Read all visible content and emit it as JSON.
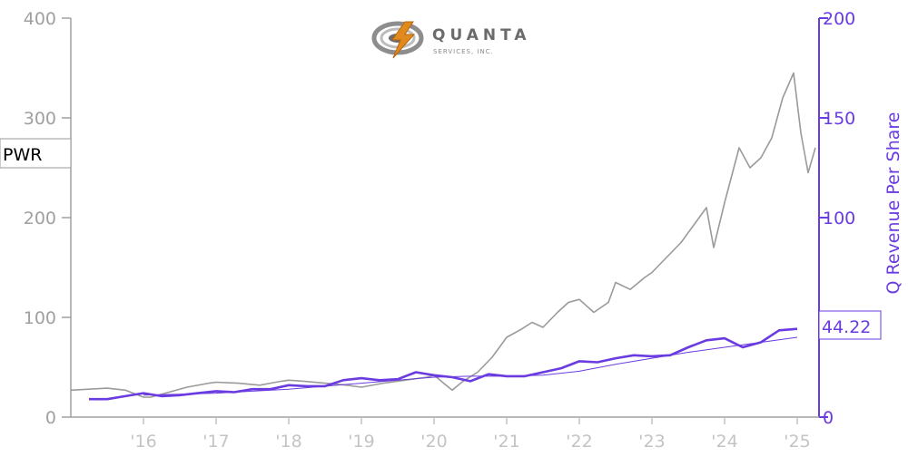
{
  "logo": {
    "name": "QUANTA",
    "sub": "SERVICES, INC."
  },
  "ticker_label": "PWR",
  "last_value_label": "44.22",
  "colors": {
    "price": "#9a9a9a",
    "revenue": "#6a3be0",
    "left_axis": "#a0a0a0",
    "x_ticks": "#c4c4c4"
  },
  "chart_data": {
    "type": "line",
    "title": "",
    "xlabel": "",
    "ylabel_left": "",
    "ylabel_right": "Q Revenue Per Share",
    "xlim": [
      2015.0,
      2025.3
    ],
    "ylim_left": [
      0,
      400
    ],
    "ylim_right": [
      0,
      200
    ],
    "x_ticks": [
      {
        "x": 2016,
        "label": "'16"
      },
      {
        "x": 2017,
        "label": "'17"
      },
      {
        "x": 2018,
        "label": "'18"
      },
      {
        "x": 2019,
        "label": "'19"
      },
      {
        "x": 2020,
        "label": "'20"
      },
      {
        "x": 2021,
        "label": "'21"
      },
      {
        "x": 2022,
        "label": "'22"
      },
      {
        "x": 2023,
        "label": "'23"
      },
      {
        "x": 2024,
        "label": "'24"
      },
      {
        "x": 2025,
        "label": "'25"
      }
    ],
    "y_ticks_left": [
      0,
      100,
      200,
      300,
      400
    ],
    "y_ticks_right": [
      0,
      50,
      100,
      150,
      200
    ],
    "grid": false,
    "legend": "none",
    "series": [
      {
        "name": "PWR",
        "axis": "left",
        "x": [
          2015.0,
          2015.25,
          2015.5,
          2015.75,
          2016.0,
          2016.1,
          2016.3,
          2016.6,
          2016.9,
          2017.0,
          2017.3,
          2017.6,
          2017.9,
          2018.0,
          2018.2,
          2018.5,
          2018.8,
          2019.0,
          2019.3,
          2019.6,
          2019.9,
          2020.0,
          2020.15,
          2020.25,
          2020.4,
          2020.6,
          2020.8,
          2021.0,
          2021.2,
          2021.35,
          2021.5,
          2021.7,
          2021.85,
          2022.0,
          2022.2,
          2022.4,
          2022.5,
          2022.7,
          2022.9,
          2023.0,
          2023.2,
          2023.4,
          2023.6,
          2023.75,
          2023.85,
          2024.0,
          2024.2,
          2024.35,
          2024.5,
          2024.65,
          2024.8,
          2024.95,
          2025.05,
          2025.15,
          2025.25
        ],
        "y": [
          27,
          28,
          29,
          27,
          20,
          20,
          24,
          30,
          34,
          35,
          34,
          32,
          36,
          37,
          36,
          34,
          32,
          30,
          34,
          37,
          40,
          42,
          33,
          27,
          36,
          45,
          60,
          80,
          88,
          95,
          90,
          105,
          115,
          118,
          105,
          115,
          135,
          128,
          140,
          145,
          160,
          175,
          195,
          210,
          170,
          215,
          270,
          250,
          260,
          280,
          320,
          345,
          285,
          245,
          270
        ]
      },
      {
        "name": "",
        "axis": "right",
        "x": [
          2015.25,
          2015.5,
          2015.75,
          2016.0,
          2016.25,
          2016.5,
          2016.75,
          2017.0,
          2017.25,
          2017.5,
          2017.75,
          2018.0,
          2018.25,
          2018.5,
          2018.75,
          2019.0,
          2019.25,
          2019.5,
          2019.75,
          2020.0,
          2020.25,
          2020.5,
          2020.75,
          2021.0,
          2021.25,
          2021.5,
          2021.75,
          2022.0,
          2022.25,
          2022.5,
          2022.75,
          2023.0,
          2023.25,
          2023.5,
          2023.75,
          2024.0,
          2024.25,
          2024.5,
          2024.75,
          2025.0
        ],
        "y": [
          9,
          9,
          10.5,
          12,
          10.5,
          11,
          12,
          13,
          12.5,
          14,
          14,
          16,
          15.5,
          15.5,
          18.5,
          19.5,
          18.5,
          19,
          22.5,
          21,
          20,
          18,
          21.5,
          20.5,
          20.5,
          22.5,
          24.5,
          28,
          27.5,
          29.5,
          31,
          30.5,
          31,
          35,
          38.5,
          39.5,
          35,
          37.5,
          43.5,
          44.22
        ]
      },
      {
        "name": "",
        "axis": "right",
        "x": [
          2016.0,
          2016.5,
          2017.0,
          2017.5,
          2018.0,
          2018.5,
          2019.0,
          2019.5,
          2020.0,
          2020.5,
          2021.0,
          2021.5,
          2022.0,
          2022.5,
          2023.0,
          2023.5,
          2024.0,
          2024.5,
          2025.0
        ],
        "y": [
          11,
          11.5,
          12,
          13,
          14,
          15.5,
          17,
          18.5,
          20,
          20.5,
          20.5,
          21,
          23,
          26.5,
          29.5,
          32.5,
          35,
          37.5,
          40
        ]
      }
    ]
  }
}
